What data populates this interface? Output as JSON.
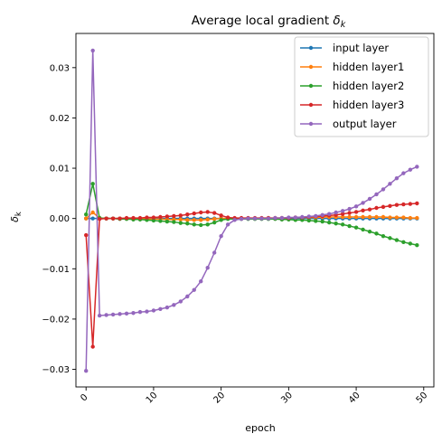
{
  "chart_data": {
    "type": "line",
    "title": "Average local gradient ",
    "title_symbol": "δ",
    "title_subscript": "k",
    "xlabel": "epoch",
    "ylabel_symbol": "δ",
    "ylabel_subscript": "k",
    "xlim": [
      -1.5,
      51.5
    ],
    "ylim": [
      -0.0335,
      0.0368
    ],
    "xticks": [
      0,
      10,
      20,
      30,
      40,
      50
    ],
    "xtick_labels": [
      "0",
      "10",
      "20",
      "30",
      "40",
      "50"
    ],
    "yticks": [
      -0.03,
      -0.02,
      -0.01,
      0.0,
      0.01,
      0.02,
      0.03
    ],
    "ytick_labels": [
      "−0.03",
      "−0.02",
      "−0.01",
      "0.00",
      "0.01",
      "0.02",
      "0.03"
    ],
    "xtick_rotation_deg": -45,
    "grid": false,
    "legend_position": "top-right",
    "marker": "circle",
    "series": [
      {
        "name": "input layer",
        "color": "#1f77b4",
        "x": [
          0,
          1,
          2,
          3,
          4,
          5,
          6,
          7,
          8,
          9,
          10,
          11,
          12,
          13,
          14,
          15,
          16,
          17,
          18,
          19,
          20,
          21,
          22,
          23,
          24,
          25,
          26,
          27,
          28,
          29,
          30,
          31,
          32,
          33,
          34,
          35,
          36,
          37,
          38,
          39,
          40,
          41,
          42,
          43,
          44,
          45,
          46,
          47,
          48,
          49
        ],
        "y": [
          0,
          0,
          0,
          0,
          0,
          0,
          0,
          0,
          0,
          0,
          0,
          0,
          0,
          0,
          0,
          0,
          0,
          0,
          0,
          0,
          0,
          0,
          0,
          0,
          0,
          0,
          0,
          0,
          0,
          0,
          0,
          0,
          0,
          0,
          0,
          0,
          0,
          0,
          0,
          0,
          0,
          0,
          0,
          0,
          0,
          0,
          0,
          0,
          0,
          0
        ]
      },
      {
        "name": "hidden layer1",
        "color": "#ff7f0e",
        "x": [
          0,
          1,
          2,
          3,
          4,
          5,
          6,
          7,
          8,
          9,
          10,
          11,
          12,
          13,
          14,
          15,
          16,
          17,
          18,
          19,
          20,
          21,
          22,
          23,
          24,
          25,
          26,
          27,
          28,
          29,
          30,
          31,
          32,
          33,
          34,
          35,
          36,
          37,
          38,
          39,
          40,
          41,
          42,
          43,
          44,
          45,
          46,
          47,
          48,
          49
        ],
        "y": [
          0,
          0.0012,
          0.0001,
          0,
          0,
          0,
          0,
          -0.0001,
          -0.0001,
          -0.0001,
          -0.0001,
          -0.0001,
          -0.0002,
          -0.0002,
          -0.0002,
          -0.0003,
          -0.0003,
          -0.0003,
          -0.0002,
          -0.0001,
          0,
          0,
          0,
          0,
          0,
          0,
          0,
          0.0001,
          0.0001,
          0.0001,
          0.0001,
          0.0002,
          0.0002,
          0.0002,
          0.0002,
          0.0003,
          0.0003,
          0.0003,
          0.0003,
          0.0003,
          0.0003,
          0.0003,
          0.0003,
          0.0003,
          0.0003,
          0.0002,
          0.0002,
          0.0002,
          0.0001,
          0.0001
        ]
      },
      {
        "name": "hidden layer2",
        "color": "#2ca02c",
        "x": [
          0,
          1,
          2,
          3,
          4,
          5,
          6,
          7,
          8,
          9,
          10,
          11,
          12,
          13,
          14,
          15,
          16,
          17,
          18,
          19,
          20,
          21,
          22,
          23,
          24,
          25,
          26,
          27,
          28,
          29,
          30,
          31,
          32,
          33,
          34,
          35,
          36,
          37,
          38,
          39,
          40,
          41,
          42,
          43,
          44,
          45,
          46,
          47,
          48,
          49
        ],
        "y": [
          0.0008,
          0.0069,
          0.0001,
          0,
          0,
          -0.0001,
          -0.0001,
          -0.0002,
          -0.0002,
          -0.0003,
          -0.0004,
          -0.0005,
          -0.0006,
          -0.0007,
          -0.0009,
          -0.001,
          -0.0012,
          -0.0013,
          -0.0012,
          -0.0008,
          -0.0003,
          -0.0001,
          -0.0001,
          -0.0001,
          -0.0001,
          -0.0001,
          -0.0001,
          -0.0001,
          -0.0001,
          -0.0002,
          -0.0002,
          -0.0003,
          -0.0003,
          -0.0004,
          -0.0005,
          -0.0006,
          -0.0008,
          -0.001,
          -0.0012,
          -0.0015,
          -0.0018,
          -0.0022,
          -0.0026,
          -0.003,
          -0.0035,
          -0.0039,
          -0.0043,
          -0.0047,
          -0.005,
          -0.0053
        ]
      },
      {
        "name": "hidden layer3",
        "color": "#d62728",
        "x": [
          0,
          1,
          2,
          3,
          4,
          5,
          6,
          7,
          8,
          9,
          10,
          11,
          12,
          13,
          14,
          15,
          16,
          17,
          18,
          19,
          20,
          21,
          22,
          23,
          24,
          25,
          26,
          27,
          28,
          29,
          30,
          31,
          32,
          33,
          34,
          35,
          36,
          37,
          38,
          39,
          40,
          41,
          42,
          43,
          44,
          45,
          46,
          47,
          48,
          49
        ],
        "y": [
          -0.0033,
          -0.0255,
          -0.0001,
          0,
          0,
          0,
          0.0001,
          0.0001,
          0.0001,
          0.0002,
          0.0002,
          0.0003,
          0.0004,
          0.0005,
          0.0006,
          0.0008,
          0.001,
          0.0012,
          0.0013,
          0.0011,
          0.0006,
          0.0002,
          0.0001,
          0.0001,
          0.0001,
          0.0001,
          0.0001,
          0.0001,
          0.0001,
          0.0001,
          0.0001,
          0.0002,
          0.0002,
          0.0003,
          0.0004,
          0.0005,
          0.0006,
          0.0007,
          0.0009,
          0.0011,
          0.0013,
          0.0016,
          0.0018,
          0.0021,
          0.0023,
          0.0025,
          0.0027,
          0.0028,
          0.0029,
          0.003
        ]
      },
      {
        "name": "output layer",
        "color": "#9467bd",
        "x": [
          0,
          1,
          2,
          3,
          4,
          5,
          6,
          7,
          8,
          9,
          10,
          11,
          12,
          13,
          14,
          15,
          16,
          17,
          18,
          19,
          20,
          21,
          22,
          23,
          24,
          25,
          26,
          27,
          28,
          29,
          30,
          31,
          32,
          33,
          34,
          35,
          36,
          37,
          38,
          39,
          40,
          41,
          42,
          43,
          44,
          45,
          46,
          47,
          48,
          49
        ],
        "y": [
          -0.0303,
          0.0334,
          -0.0193,
          -0.0192,
          -0.0191,
          -0.019,
          -0.0189,
          -0.0188,
          -0.0186,
          -0.0185,
          -0.0183,
          -0.018,
          -0.0177,
          -0.0172,
          -0.0165,
          -0.0155,
          -0.0142,
          -0.0125,
          -0.0098,
          -0.0068,
          -0.0035,
          -0.0012,
          -0.0003,
          -0.0001,
          0,
          0,
          0,
          0,
          0.0001,
          0.0001,
          0.0002,
          0.0002,
          0.0003,
          0.0004,
          0.0005,
          0.0007,
          0.0009,
          0.0012,
          0.0015,
          0.0019,
          0.0024,
          0.0031,
          0.0039,
          0.0048,
          0.0058,
          0.0069,
          0.008,
          0.009,
          0.0097,
          0.0103
        ]
      }
    ]
  }
}
